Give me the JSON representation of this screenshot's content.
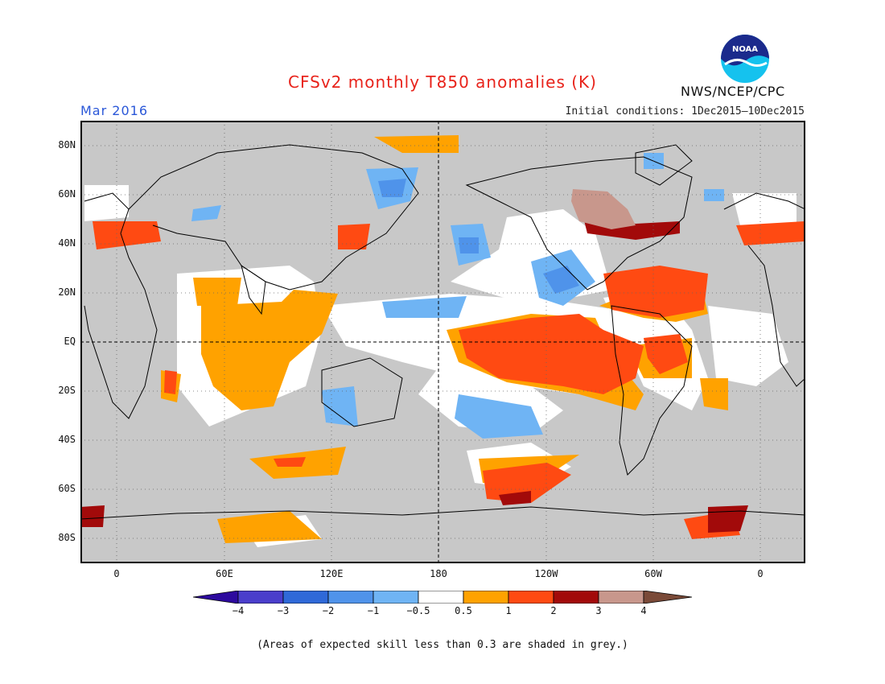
{
  "header": {
    "title": "CFSv2 monthly T850 anomalies (K)",
    "month": "Mar 2016",
    "initial_conditions": "Initial conditions: 1Dec2015—10Dec2015",
    "agency": "NWS/NCEP/CPC",
    "logo_text": "NOAA"
  },
  "map": {
    "projection": "equirectangular",
    "lat_labels": [
      "80N",
      "60N",
      "40N",
      "20N",
      "EQ",
      "20S",
      "40S",
      "60S",
      "80S"
    ],
    "lon_labels": [
      "0",
      "60E",
      "120E",
      "180",
      "120W",
      "60W",
      "0"
    ],
    "grey_meaning": "low skill",
    "regions": [
      {
        "name": "central-east-pacific",
        "level": "1-2",
        "color": "#ff4a12"
      },
      {
        "name": "indian-ocean",
        "level": "0.5-1",
        "color": "#ffa200"
      },
      {
        "name": "north-pacific",
        "level": "-1 to -0.5",
        "color": "#6fb4f4"
      },
      {
        "name": "hudson-bay",
        "level": "3-4",
        "color": "#c8978c"
      }
    ]
  },
  "legend": {
    "ticks": [
      "−4",
      "−3",
      "−2",
      "−1",
      "−0.5",
      "0.5",
      "1",
      "2",
      "3",
      "4"
    ],
    "colors": [
      "#2d0a9e",
      "#4a3ecb",
      "#2f69d8",
      "#4f93ea",
      "#6fb4f4",
      "#ffffff",
      "#ffa200",
      "#ff4a12",
      "#a20a0a",
      "#c8978c",
      "#7a4a38"
    ]
  },
  "footnote": "(Areas of expected skill less than 0.3 are shaded in grey.)"
}
